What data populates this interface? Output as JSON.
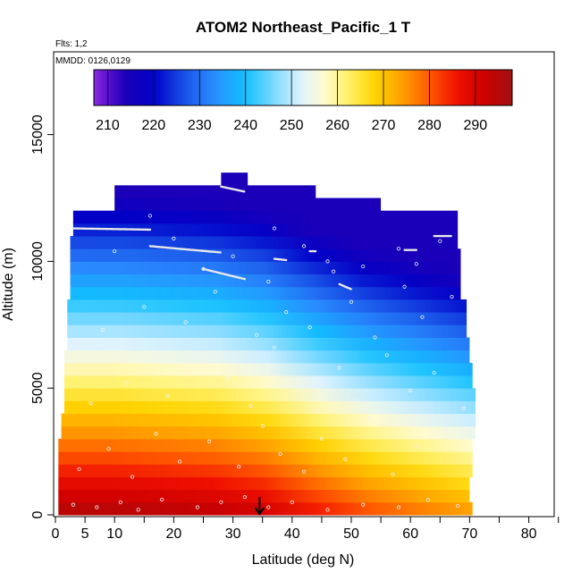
{
  "chart_data": {
    "type": "heatmap",
    "title": "ATOM2 Northeast_Pacific_1 T",
    "flights_note": "Flts: 1,2",
    "dates_note": "MMDD: 0126,0129",
    "xlabel": "Latitude (deg N)",
    "ylabel": "Altitude (m)",
    "xlim": [
      0,
      85
    ],
    "ylim": [
      0,
      17500
    ],
    "x_ticks": [
      0,
      5,
      10,
      20,
      30,
      40,
      50,
      60,
      70,
      80
    ],
    "x_minor_ticks": [
      15,
      25,
      35,
      45,
      55,
      65,
      75,
      85
    ],
    "y_ticks": [
      0,
      5000,
      10000,
      15000
    ],
    "colorbar": {
      "min": 207,
      "max": 298,
      "ticks": [
        210,
        220,
        230,
        240,
        250,
        260,
        270,
        280,
        290
      ],
      "boundaries": [
        210,
        220,
        230,
        240,
        250,
        260,
        270,
        280,
        290
      ]
    },
    "color_stops": [
      {
        "value": 207,
        "color": "#8a2be2"
      },
      {
        "value": 210,
        "color": "#5a0fd0"
      },
      {
        "value": 214,
        "color": "#1a00b8"
      },
      {
        "value": 220,
        "color": "#0000c8"
      },
      {
        "value": 227,
        "color": "#1a55e8"
      },
      {
        "value": 233,
        "color": "#2a8cff"
      },
      {
        "value": 240,
        "color": "#10c0ff"
      },
      {
        "value": 246,
        "color": "#7ad8ff"
      },
      {
        "value": 252,
        "color": "#dff3ff"
      },
      {
        "value": 257,
        "color": "#fffad0"
      },
      {
        "value": 262,
        "color": "#fff270"
      },
      {
        "value": 268,
        "color": "#ffd400"
      },
      {
        "value": 274,
        "color": "#ffa000"
      },
      {
        "value": 280,
        "color": "#ff5a00"
      },
      {
        "value": 286,
        "color": "#f01000"
      },
      {
        "value": 292,
        "color": "#cc0000"
      },
      {
        "value": 298,
        "color": "#a01010"
      }
    ],
    "altitude_bins_m": [
      0,
      500,
      1000,
      1500,
      2000,
      2500,
      3000,
      3500,
      4000,
      4500,
      5000,
      5500,
      6000,
      6500,
      7000,
      7500,
      8000,
      8500,
      9000,
      9500,
      10000,
      10500,
      11000,
      11500,
      12000,
      12500,
      13000
    ],
    "latitude_extent_per_bin": [
      [
        0.5,
        70.5
      ],
      [
        0.5,
        70.0
      ],
      [
        0.5,
        70.0
      ],
      [
        0.5,
        70.5
      ],
      [
        0.5,
        70.5
      ],
      [
        0.5,
        70.5
      ],
      [
        1.0,
        71.0
      ],
      [
        1.0,
        71.0
      ],
      [
        1.5,
        71.0
      ],
      [
        1.5,
        71.0
      ],
      [
        1.5,
        70.5
      ],
      [
        1.5,
        70.5
      ],
      [
        1.5,
        70.0
      ],
      [
        2.0,
        70.0
      ],
      [
        2.0,
        69.5
      ],
      [
        2.0,
        69.5
      ],
      [
        2.0,
        69.5
      ],
      [
        2.5,
        68.5
      ],
      [
        2.5,
        68.5
      ],
      [
        2.5,
        68.5
      ],
      [
        2.5,
        68.5
      ],
      [
        2.5,
        68.0
      ],
      [
        3.0,
        68.0
      ],
      [
        3.0,
        68.0
      ],
      [
        10.0,
        55.0
      ],
      [
        10.0,
        44.0
      ],
      [
        28.0,
        32.5
      ]
    ],
    "temperature_profile": {
      "latitudes_deg": [
        0,
        10,
        20,
        30,
        35,
        40,
        45,
        50,
        55,
        60,
        65,
        70
      ],
      "surface_temperature_K": [
        296,
        296,
        295,
        294,
        292,
        289,
        286,
        283,
        281,
        279,
        277,
        275
      ],
      "lapse_rate_K_per_km": 6.5,
      "tropopause_minimum_K": 214
    },
    "observations": [
      {
        "lat": 3,
        "alt": 400
      },
      {
        "lat": 7,
        "alt": 300
      },
      {
        "lat": 11,
        "alt": 500
      },
      {
        "lat": 14,
        "alt": 200
      },
      {
        "lat": 18,
        "alt": 600
      },
      {
        "lat": 24,
        "alt": 300
      },
      {
        "lat": 28,
        "alt": 500
      },
      {
        "lat": 32,
        "alt": 700
      },
      {
        "lat": 36,
        "alt": 300
      },
      {
        "lat": 40,
        "alt": 500
      },
      {
        "lat": 46,
        "alt": 200
      },
      {
        "lat": 52,
        "alt": 400
      },
      {
        "lat": 58,
        "alt": 300
      },
      {
        "lat": 63,
        "alt": 600
      },
      {
        "lat": 68,
        "alt": 350
      },
      {
        "lat": 4,
        "alt": 1800
      },
      {
        "lat": 9,
        "alt": 2600
      },
      {
        "lat": 13,
        "alt": 1500
      },
      {
        "lat": 17,
        "alt": 3200
      },
      {
        "lat": 21,
        "alt": 2100
      },
      {
        "lat": 26,
        "alt": 2900
      },
      {
        "lat": 31,
        "alt": 1900
      },
      {
        "lat": 35,
        "alt": 3500
      },
      {
        "lat": 38,
        "alt": 2400
      },
      {
        "lat": 42,
        "alt": 1700
      },
      {
        "lat": 45,
        "alt": 3000
      },
      {
        "lat": 49,
        "alt": 2200
      },
      {
        "lat": 53,
        "alt": 3800
      },
      {
        "lat": 57,
        "alt": 1600
      },
      {
        "lat": 61,
        "alt": 2700
      },
      {
        "lat": 66,
        "alt": 3400
      },
      {
        "lat": 6,
        "alt": 4400
      },
      {
        "lat": 12,
        "alt": 5200
      },
      {
        "lat": 19,
        "alt": 4700
      },
      {
        "lat": 23,
        "alt": 6100
      },
      {
        "lat": 29,
        "alt": 5400
      },
      {
        "lat": 33,
        "alt": 4300
      },
      {
        "lat": 37,
        "alt": 6600
      },
      {
        "lat": 41,
        "alt": 5000
      },
      {
        "lat": 44,
        "alt": 4100
      },
      {
        "lat": 48,
        "alt": 5800
      },
      {
        "lat": 51,
        "alt": 4500
      },
      {
        "lat": 56,
        "alt": 6300
      },
      {
        "lat": 60,
        "alt": 4900
      },
      {
        "lat": 64,
        "alt": 5600
      },
      {
        "lat": 69,
        "alt": 4200
      },
      {
        "lat": 8,
        "alt": 7300
      },
      {
        "lat": 15,
        "alt": 8200
      },
      {
        "lat": 22,
        "alt": 7600
      },
      {
        "lat": 27,
        "alt": 8800
      },
      {
        "lat": 34,
        "alt": 7100
      },
      {
        "lat": 36,
        "alt": 9200
      },
      {
        "lat": 39,
        "alt": 8000
      },
      {
        "lat": 43,
        "alt": 7400
      },
      {
        "lat": 47,
        "alt": 9600
      },
      {
        "lat": 50,
        "alt": 8400
      },
      {
        "lat": 54,
        "alt": 7000
      },
      {
        "lat": 59,
        "alt": 9000
      },
      {
        "lat": 62,
        "alt": 7800
      },
      {
        "lat": 67,
        "alt": 8600
      },
      {
        "lat": 10,
        "alt": 10400
      },
      {
        "lat": 16,
        "alt": 11800
      },
      {
        "lat": 20,
        "alt": 10900
      },
      {
        "lat": 25,
        "alt": 9700
      },
      {
        "lat": 30,
        "alt": 10200
      },
      {
        "lat": 37,
        "alt": 11300
      },
      {
        "lat": 42,
        "alt": 10600
      },
      {
        "lat": 46,
        "alt": 10000
      },
      {
        "lat": 52,
        "alt": 9800
      },
      {
        "lat": 58,
        "alt": 10500
      },
      {
        "lat": 61,
        "alt": 9900
      },
      {
        "lat": 65,
        "alt": 10800
      }
    ],
    "flight_tracks": [
      {
        "lat_start": 3,
        "lat_end": 16,
        "alt_start": 11300,
        "alt_end": 11250
      },
      {
        "lat_start": 16,
        "lat_end": 28,
        "alt_start": 10600,
        "alt_end": 10350
      },
      {
        "lat_start": 25,
        "lat_end": 32,
        "alt_start": 9700,
        "alt_end": 9300
      },
      {
        "lat_start": 28,
        "lat_end": 32,
        "alt_start": 12950,
        "alt_end": 12750
      },
      {
        "lat_start": 37,
        "lat_end": 39,
        "alt_start": 10100,
        "alt_end": 10050
      },
      {
        "lat_start": 43,
        "lat_end": 44,
        "alt_start": 10400,
        "alt_end": 10400
      },
      {
        "lat_start": 48,
        "lat_end": 50,
        "alt_start": 9100,
        "alt_end": 8900
      },
      {
        "lat_start": 59,
        "lat_end": 61,
        "alt_start": 10450,
        "alt_end": 10450
      },
      {
        "lat_start": 64,
        "lat_end": 67,
        "alt_start": 11000,
        "alt_end": 11000
      }
    ],
    "marker": {
      "type": "down-arrow",
      "lat": 34.5,
      "alt_top": 700,
      "alt_bottom": 0
    }
  }
}
